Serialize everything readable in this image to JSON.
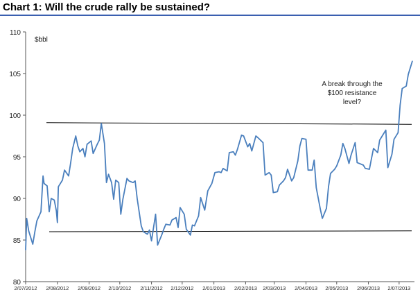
{
  "title": "Chart 1:  Will the crude rally be sustained?",
  "colors": {
    "line": "#4a7fbd",
    "title_rule": "#3a5fb0",
    "resistance": "#000000"
  },
  "chart_data": {
    "type": "line",
    "title": "Chart 1:  Will the crude rally be sustained?",
    "ylabel": "$bbl",
    "xlabel": "",
    "ylim": [
      80,
      110
    ],
    "yticks": [
      "110",
      "105",
      "100",
      "95",
      "90",
      "85",
      "80"
    ],
    "xticks": [
      "2/07/2012",
      "2/08/2012",
      "2/09/2012",
      "2/10/2012",
      "2/11/2012",
      "2/12/2012",
      "2/01/2013",
      "2/02/2013",
      "2/03/2013",
      "2/04/2013",
      "2/05/2013",
      "2/06/2013",
      "2/07/2013"
    ],
    "grid": false,
    "annotation": [
      "A break through the",
      "$100 resistance",
      "level?"
    ],
    "resistance_line": {
      "from": [
        "2/07/2012",
        99.1
      ],
      "to": [
        "end",
        98.9
      ]
    },
    "support_line": {
      "from": [
        "2/07/2012",
        86.0
      ],
      "to": [
        "end",
        86.1
      ]
    },
    "series": [
      {
        "values": [
          [
            "2/07/2012",
            83.8
          ],
          [
            "3/07/2012",
            87.6
          ],
          [
            "5/07/2012",
            86.1
          ],
          [
            "9/07/2012",
            84.5
          ],
          [
            "11/07/2012",
            86.0
          ],
          [
            "13/07/2012",
            87.3
          ],
          [
            "17/07/2012",
            88.4
          ],
          [
            "19/07/2012",
            92.7
          ],
          [
            "20/07/2012",
            91.8
          ],
          [
            "23/07/2012",
            91.5
          ],
          [
            "25/07/2012",
            88.4
          ],
          [
            "27/07/2012",
            90.0
          ],
          [
            "30/07/2012",
            89.8
          ],
          [
            "1/08/2012",
            88.5
          ],
          [
            "2/08/2012",
            87.1
          ],
          [
            "3/08/2012",
            91.4
          ],
          [
            "7/08/2012",
            92.2
          ],
          [
            "9/08/2012",
            93.4
          ],
          [
            "13/08/2012",
            92.7
          ],
          [
            "15/08/2012",
            94.3
          ],
          [
            "17/08/2012",
            96.0
          ],
          [
            "20/08/2012",
            97.5
          ],
          [
            "22/08/2012",
            96.3
          ],
          [
            "24/08/2012",
            95.6
          ],
          [
            "27/08/2012",
            96.0
          ],
          [
            "29/08/2012",
            95.0
          ],
          [
            "31/08/2012",
            96.5
          ],
          [
            "4/09/2012",
            96.9
          ],
          [
            "6/09/2012",
            95.4
          ],
          [
            "10/09/2012",
            96.5
          ],
          [
            "12/09/2012",
            97.0
          ],
          [
            "14/09/2012",
            99.0
          ],
          [
            "17/09/2012",
            96.6
          ],
          [
            "19/09/2012",
            91.9
          ],
          [
            "21/09/2012",
            92.9
          ],
          [
            "24/09/2012",
            91.9
          ],
          [
            "26/09/2012",
            89.9
          ],
          [
            "28/09/2012",
            92.2
          ],
          [
            "1/10/2012",
            91.9
          ],
          [
            "3/10/2012",
            88.1
          ],
          [
            "5/10/2012",
            89.9
          ],
          [
            "9/10/2012",
            92.4
          ],
          [
            "11/10/2012",
            92.1
          ],
          [
            "15/10/2012",
            91.9
          ],
          [
            "17/10/2012",
            92.1
          ],
          [
            "19/10/2012",
            90.0
          ],
          [
            "23/10/2012",
            86.7
          ],
          [
            "25/10/2012",
            86.0
          ],
          [
            "29/10/2012",
            85.7
          ],
          [
            "31/10/2012",
            86.2
          ],
          [
            "2/11/2012",
            84.9
          ],
          [
            "6/11/2012",
            88.1
          ],
          [
            "8/11/2012",
            84.4
          ],
          [
            "12/11/2012",
            85.6
          ],
          [
            "14/11/2012",
            86.3
          ],
          [
            "16/11/2012",
            86.9
          ],
          [
            "20/11/2012",
            86.8
          ],
          [
            "22/11/2012",
            87.4
          ],
          [
            "26/11/2012",
            87.7
          ],
          [
            "28/11/2012",
            86.5
          ],
          [
            "30/11/2012",
            88.9
          ],
          [
            "4/12/2012",
            88.1
          ],
          [
            "6/12/2012",
            86.3
          ],
          [
            "10/12/2012",
            85.6
          ],
          [
            "12/12/2012",
            86.8
          ],
          [
            "14/12/2012",
            86.7
          ],
          [
            "18/12/2012",
            87.9
          ],
          [
            "20/12/2012",
            90.1
          ],
          [
            "24/12/2012",
            88.6
          ],
          [
            "27/12/2012",
            90.9
          ],
          [
            "31/12/2012",
            91.8
          ],
          [
            "3/01/2013",
            93.1
          ],
          [
            "7/01/2013",
            93.2
          ],
          [
            "9/01/2013",
            93.1
          ],
          [
            "11/01/2013",
            93.6
          ],
          [
            "15/01/2013",
            93.3
          ],
          [
            "17/01/2013",
            95.5
          ],
          [
            "21/01/2013",
            95.6
          ],
          [
            "23/01/2013",
            95.2
          ],
          [
            "25/01/2013",
            95.9
          ],
          [
            "29/01/2013",
            97.6
          ],
          [
            "31/01/2013",
            97.5
          ],
          [
            "4/02/2013",
            96.2
          ],
          [
            "6/02/2013",
            96.6
          ],
          [
            "8/02/2013",
            95.7
          ],
          [
            "12/02/2013",
            97.5
          ],
          [
            "14/02/2013",
            97.3
          ],
          [
            "19/02/2013",
            96.7
          ],
          [
            "21/02/2013",
            92.8
          ],
          [
            "25/02/2013",
            93.1
          ],
          [
            "27/02/2013",
            92.8
          ],
          [
            "1/03/2013",
            90.7
          ],
          [
            "5/03/2013",
            90.8
          ],
          [
            "7/03/2013",
            91.6
          ],
          [
            "11/03/2013",
            92.1
          ],
          [
            "13/03/2013",
            92.5
          ],
          [
            "15/03/2013",
            93.5
          ],
          [
            "19/03/2013",
            92.1
          ],
          [
            "21/03/2013",
            92.5
          ],
          [
            "25/03/2013",
            94.5
          ],
          [
            "27/03/2013",
            96.3
          ],
          [
            "29/03/2013",
            97.2
          ],
          [
            "2/04/2013",
            97.1
          ],
          [
            "4/04/2013",
            93.4
          ],
          [
            "8/04/2013",
            93.4
          ],
          [
            "10/04/2013",
            94.6
          ],
          [
            "12/04/2013",
            91.3
          ],
          [
            "16/04/2013",
            88.7
          ],
          [
            "18/04/2013",
            87.6
          ],
          [
            "22/04/2013",
            88.8
          ],
          [
            "24/04/2013",
            91.4
          ],
          [
            "26/04/2013",
            93.0
          ],
          [
            "30/04/2013",
            93.5
          ],
          [
            "2/05/2013",
            93.9
          ],
          [
            "6/05/2013",
            95.2
          ],
          [
            "8/05/2013",
            96.6
          ],
          [
            "10/05/2013",
            96.0
          ],
          [
            "14/05/2013",
            94.2
          ],
          [
            "16/05/2013",
            95.2
          ],
          [
            "20/05/2013",
            96.7
          ],
          [
            "22/05/2013",
            94.3
          ],
          [
            "24/05/2013",
            94.2
          ],
          [
            "28/05/2013",
            94.0
          ],
          [
            "30/05/2013",
            93.6
          ],
          [
            "3/06/2013",
            93.5
          ],
          [
            "5/06/2013",
            94.8
          ],
          [
            "7/06/2013",
            96.0
          ],
          [
            "11/06/2013",
            95.5
          ],
          [
            "13/06/2013",
            97.0
          ],
          [
            "17/06/2013",
            97.8
          ],
          [
            "19/06/2013",
            98.2
          ],
          [
            "21/06/2013",
            93.7
          ],
          [
            "25/06/2013",
            95.3
          ],
          [
            "27/06/2013",
            97.1
          ],
          [
            "1/07/2013",
            97.9
          ],
          [
            "3/07/2013",
            101.2
          ],
          [
            "5/07/2013",
            103.2
          ],
          [
            "9/07/2013",
            103.5
          ],
          [
            "11/07/2013",
            104.9
          ],
          [
            "15/07/2013",
            106.5
          ]
        ]
      }
    ]
  }
}
